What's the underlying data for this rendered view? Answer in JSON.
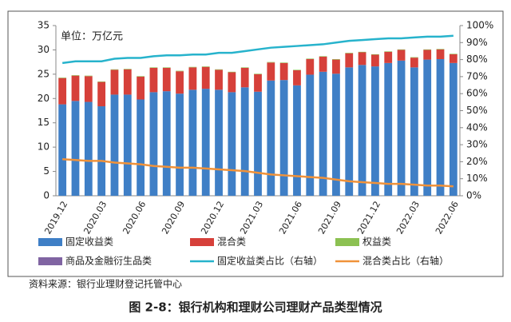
{
  "chart_data": {
    "type": "bar",
    "stacked": true,
    "title": "图 2-8：银行机构和理财公司理财产品类型情况",
    "annotation": "单位：万亿元",
    "source": "资料来源：银行业理财登记托管中心",
    "categories": [
      "2019.12",
      null,
      null,
      "2020.03",
      null,
      null,
      "2020.06",
      null,
      null,
      "2020.09",
      null,
      null,
      "2020.12",
      null,
      null,
      "2021.03",
      null,
      null,
      "2021.06",
      null,
      null,
      "2021.09",
      null,
      null,
      "2021.12",
      null,
      null,
      "2022.03",
      null,
      null,
      "2022.06"
    ],
    "series": [
      {
        "name": "固定收益类",
        "type": "bar",
        "color": "#3f7fc6",
        "values": [
          18.8,
          19.5,
          19.3,
          18.4,
          20.8,
          20.8,
          19.8,
          21.3,
          21.5,
          21.0,
          21.8,
          22.0,
          21.8,
          21.3,
          22.3,
          21.4,
          23.7,
          23.8,
          22.7,
          24.9,
          25.5,
          25.1,
          26.4,
          26.9,
          26.6,
          27.3,
          27.8,
          26.4,
          28.0,
          28.1,
          27.3
        ]
      },
      {
        "name": "混合类",
        "type": "bar",
        "color": "#d6403a",
        "values": [
          5.4,
          5.2,
          5.3,
          5.0,
          5.1,
          5.2,
          4.7,
          5.0,
          4.8,
          4.6,
          4.6,
          4.5,
          4.1,
          4.1,
          4.0,
          3.6,
          3.7,
          3.5,
          3.1,
          3.2,
          3.1,
          2.9,
          2.9,
          2.6,
          2.4,
          2.3,
          2.2,
          2.0,
          2.0,
          2.0,
          1.8
        ]
      },
      {
        "name": "权益类",
        "type": "bar",
        "color": "#8cc152",
        "values": [
          0.1,
          0.1,
          0.1,
          0.1,
          0.1,
          0.1,
          0.1,
          0.1,
          0.1,
          0.1,
          0.1,
          0.1,
          0.1,
          0.1,
          0.1,
          0.1,
          0.1,
          0.1,
          0.1,
          0.1,
          0.1,
          0.1,
          0.1,
          0.1,
          0.1,
          0.1,
          0.1,
          0.1,
          0.1,
          0.1,
          0.1
        ]
      },
      {
        "name": "商品及金融衍生品类",
        "type": "bar",
        "color": "#8064a2",
        "values": [
          0,
          0,
          0,
          0,
          0,
          0,
          0,
          0,
          0,
          0,
          0,
          0,
          0,
          0,
          0,
          0,
          0,
          0,
          0,
          0,
          0,
          0,
          0,
          0,
          0,
          0,
          0,
          0,
          0,
          0,
          0
        ]
      },
      {
        "name": "固定收益类占比（右轴）",
        "type": "line",
        "axis": "y2",
        "color": "#27b3cc",
        "values": [
          78,
          79,
          79,
          79,
          80.5,
          81,
          81,
          82,
          82.5,
          82.5,
          83,
          83,
          84,
          84,
          85,
          86,
          87,
          87.5,
          88,
          88.5,
          89,
          90,
          91,
          91.5,
          92,
          92.5,
          92.5,
          93,
          93.5,
          93.5,
          94
        ]
      },
      {
        "name": "混合类占比（右轴）",
        "type": "line",
        "axis": "y2",
        "color": "#f0923a",
        "values": [
          21.5,
          21,
          20.5,
          20.5,
          19.5,
          19,
          18.5,
          17.5,
          17,
          16.5,
          16.5,
          16,
          15.5,
          15,
          14.5,
          13.5,
          12.5,
          12,
          11.5,
          11,
          10.5,
          9.5,
          8.5,
          8,
          7.5,
          7,
          7,
          6.5,
          6,
          6,
          5.5
        ]
      }
    ],
    "ylim": [
      0,
      35
    ],
    "yticks": [
      0,
      5,
      10,
      15,
      20,
      25,
      30,
      35
    ],
    "y2lim": [
      0,
      100
    ],
    "y2ticks": [
      {
        "value": 0,
        "label": "0%"
      },
      {
        "value": 10,
        "label": "10%"
      },
      {
        "value": 20,
        "label": "20%"
      },
      {
        "value": 30,
        "label": "30%"
      },
      {
        "value": 40,
        "label": "40%"
      },
      {
        "value": 50,
        "label": "50%"
      },
      {
        "value": 60,
        "label": "60%"
      },
      {
        "value": 70,
        "label": "70%"
      },
      {
        "value": 80,
        "label": "80%"
      },
      {
        "value": 90,
        "label": "90%"
      },
      {
        "value": 100,
        "label": "100%"
      }
    ]
  }
}
